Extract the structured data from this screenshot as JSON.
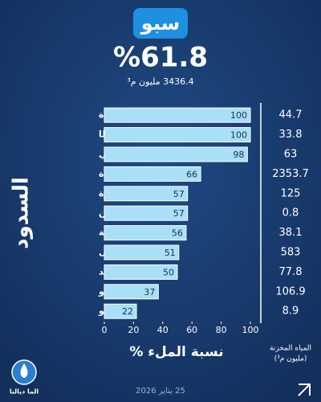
{
  "chart_data": {
    "type": "bar",
    "orientation": "horizontal",
    "title": "سبو",
    "headline": "%61.8",
    "subtitle": "3436.4 مليون م³",
    "side_label": "السدود",
    "x_label": "نسبة الملء %",
    "categories": [
      "بوهودة",
      "باب لوطا",
      "علال الفاسي",
      "الوحدة",
      "القنصرة",
      "ميشليفن",
      "الساهلة",
      "إدريس الأول",
      "سيدي الشاهد",
      "أسفالو",
      "منع سبو"
    ],
    "values": [
      100,
      100,
      98,
      66,
      57,
      57,
      56,
      51,
      50,
      37,
      22
    ],
    "color": "#a9dff7",
    "xlim": [
      0,
      100
    ],
    "xticks": [
      0,
      20,
      40,
      60,
      80,
      100
    ],
    "stored": {
      "header": [
        "المياه المخزنة",
        "(مليون م³)"
      ],
      "values": [
        44.7,
        33.8,
        63,
        2353.7,
        125,
        0.8,
        38.1,
        583,
        77.8,
        106.9,
        8.9
      ]
    },
    "date": "25 يناير 2026",
    "brand": "الما ديالنا"
  }
}
